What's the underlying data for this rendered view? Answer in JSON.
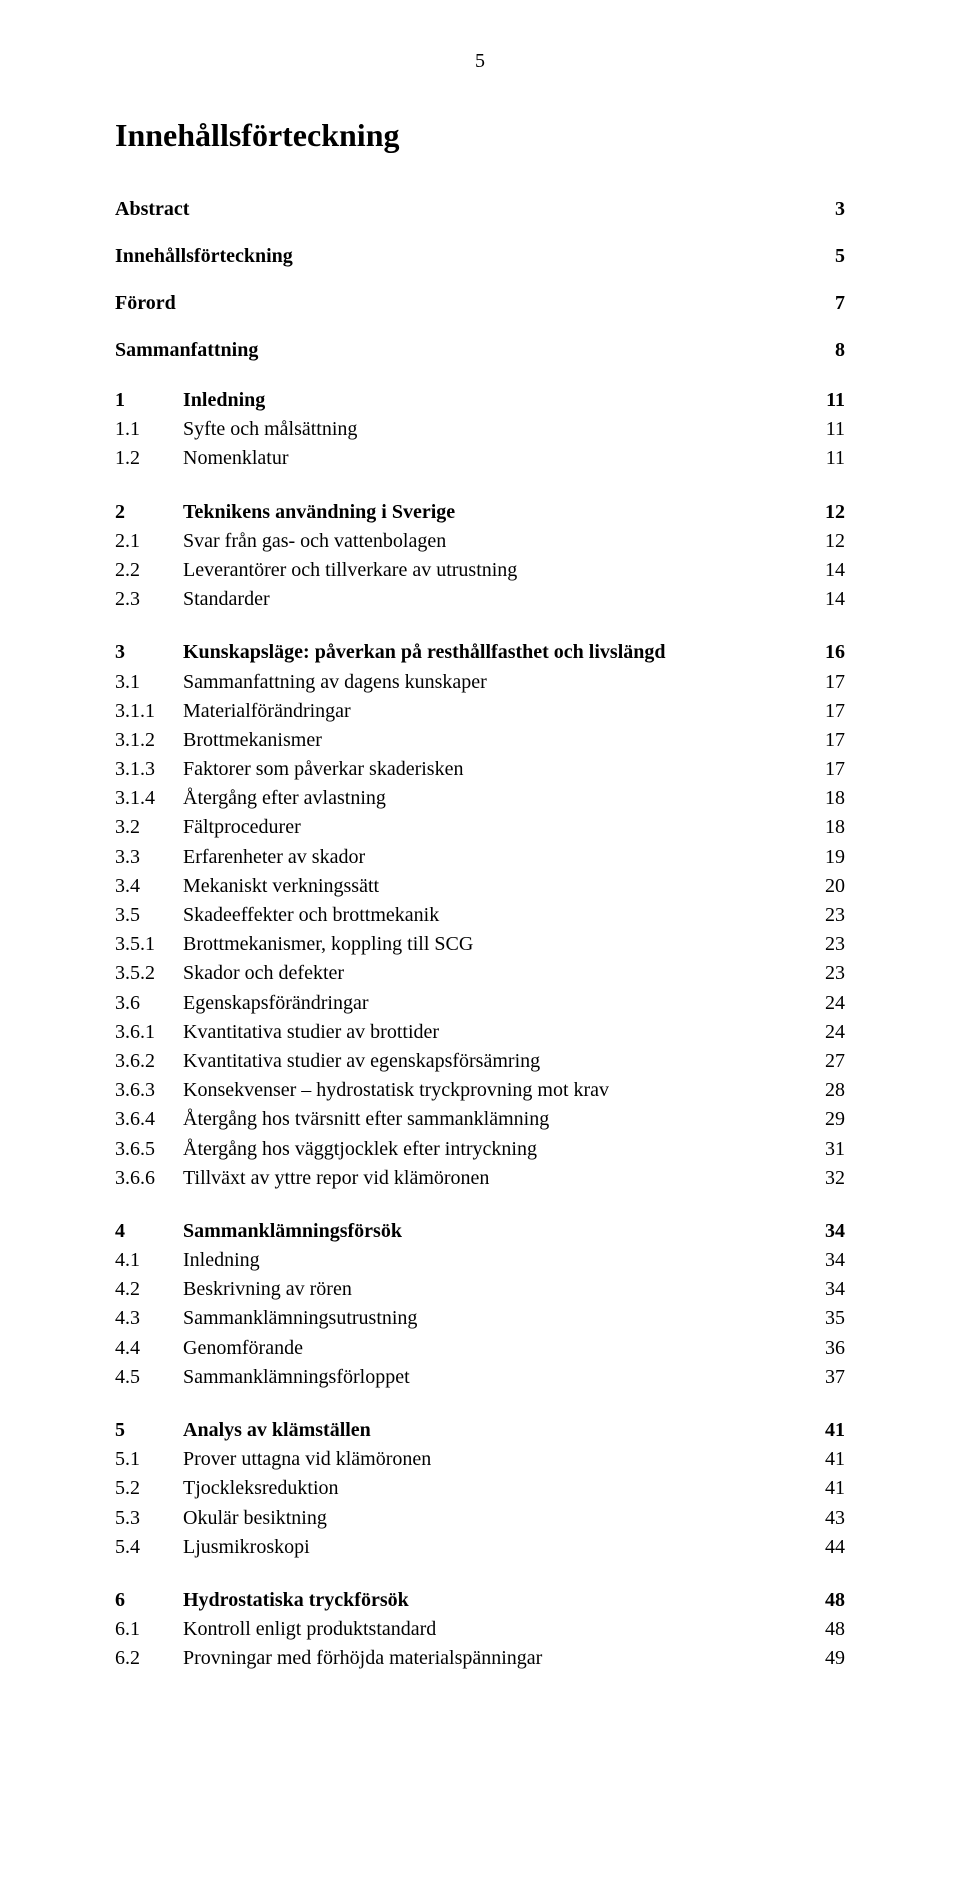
{
  "page_number": "5",
  "doc_title": "Innehållsförteckning",
  "front_matter": [
    {
      "title": "Abstract",
      "page": "3"
    },
    {
      "title": "Innehållsförteckning",
      "page": "5"
    },
    {
      "title": "Förord",
      "page": "7"
    },
    {
      "title": "Sammanfattning",
      "page": "8"
    }
  ],
  "sections": [
    [
      {
        "num": "1",
        "title": "Inledning",
        "page": "11",
        "bold": true
      },
      {
        "num": "1.1",
        "title": "Syfte och målsättning",
        "page": "11",
        "bold": false
      },
      {
        "num": "1.2",
        "title": "Nomenklatur",
        "page": "11",
        "bold": false
      }
    ],
    [
      {
        "num": "2",
        "title": "Teknikens användning i Sverige",
        "page": "12",
        "bold": true
      },
      {
        "num": "2.1",
        "title": "Svar från gas- och vattenbolagen",
        "page": "12",
        "bold": false
      },
      {
        "num": "2.2",
        "title": "Leverantörer och tillverkare av utrustning",
        "page": "14",
        "bold": false
      },
      {
        "num": "2.3",
        "title": "Standarder",
        "page": "14",
        "bold": false
      }
    ],
    [
      {
        "num": "3",
        "title": "Kunskapsläge: påverkan på resthållfasthet och livslängd",
        "page": "16",
        "bold": true
      },
      {
        "num": "3.1",
        "title": "Sammanfattning av dagens kunskaper",
        "page": "17",
        "bold": false
      },
      {
        "num": "3.1.1",
        "title": "Materialförändringar",
        "page": "17",
        "bold": false
      },
      {
        "num": "3.1.2",
        "title": "Brottmekanismer",
        "page": "17",
        "bold": false
      },
      {
        "num": "3.1.3",
        "title": "Faktorer som påverkar skaderisken",
        "page": "17",
        "bold": false
      },
      {
        "num": "3.1.4",
        "title": "Återgång efter avlastning",
        "page": "18",
        "bold": false
      },
      {
        "num": "3.2",
        "title": "Fältprocedurer",
        "page": "18",
        "bold": false
      },
      {
        "num": "3.3",
        "title": "Erfarenheter av skador",
        "page": "19",
        "bold": false
      },
      {
        "num": "3.4",
        "title": "Mekaniskt verkningssätt",
        "page": "20",
        "bold": false
      },
      {
        "num": "3.5",
        "title": "Skadeeffekter och brottmekanik",
        "page": "23",
        "bold": false
      },
      {
        "num": "3.5.1",
        "title": "Brottmekanismer, koppling till SCG",
        "page": "23",
        "bold": false
      },
      {
        "num": "3.5.2",
        "title": "Skador och defekter",
        "page": "23",
        "bold": false
      },
      {
        "num": "3.6",
        "title": "Egenskapsförändringar",
        "page": "24",
        "bold": false
      },
      {
        "num": "3.6.1",
        "title": "Kvantitativa studier av brottider",
        "page": "24",
        "bold": false
      },
      {
        "num": "3.6.2",
        "title": "Kvantitativa studier av egenskapsförsämring",
        "page": "27",
        "bold": false
      },
      {
        "num": "3.6.3",
        "title": "Konsekvenser – hydrostatisk tryckprovning mot krav",
        "page": "28",
        "bold": false
      },
      {
        "num": "3.6.4",
        "title": "Återgång hos tvärsnitt efter sammanklämning",
        "page": "29",
        "bold": false
      },
      {
        "num": "3.6.5",
        "title": "Återgång hos väggtjocklek efter intryckning",
        "page": "31",
        "bold": false
      },
      {
        "num": "3.6.6",
        "title": "Tillväxt av yttre repor vid klämöronen",
        "page": "32",
        "bold": false
      }
    ],
    [
      {
        "num": "4",
        "title": "Sammanklämningsförsök",
        "page": "34",
        "bold": true
      },
      {
        "num": "4.1",
        "title": "Inledning",
        "page": "34",
        "bold": false
      },
      {
        "num": "4.2",
        "title": "Beskrivning av rören",
        "page": "34",
        "bold": false
      },
      {
        "num": "4.3",
        "title": "Sammanklämningsutrustning",
        "page": "35",
        "bold": false
      },
      {
        "num": "4.4",
        "title": "Genomförande",
        "page": "36",
        "bold": false
      },
      {
        "num": "4.5",
        "title": "Sammanklämningsförloppet",
        "page": "37",
        "bold": false
      }
    ],
    [
      {
        "num": "5",
        "title": "Analys av klämställen",
        "page": "41",
        "bold": true
      },
      {
        "num": "5.1",
        "title": "Prover uttagna vid klämöronen",
        "page": "41",
        "bold": false
      },
      {
        "num": "5.2",
        "title": "Tjockleksreduktion",
        "page": "41",
        "bold": false
      },
      {
        "num": "5.3",
        "title": "Okulär besiktning",
        "page": "43",
        "bold": false
      },
      {
        "num": "5.4",
        "title": "Ljusmikroskopi",
        "page": "44",
        "bold": false
      }
    ],
    [
      {
        "num": "6",
        "title": "Hydrostatiska tryckförsök",
        "page": "48",
        "bold": true
      },
      {
        "num": "6.1",
        "title": "Kontroll enligt produktstandard",
        "page": "48",
        "bold": false
      },
      {
        "num": "6.2",
        "title": "Provningar med förhöjda materialspänningar",
        "page": "49",
        "bold": false
      }
    ]
  ]
}
